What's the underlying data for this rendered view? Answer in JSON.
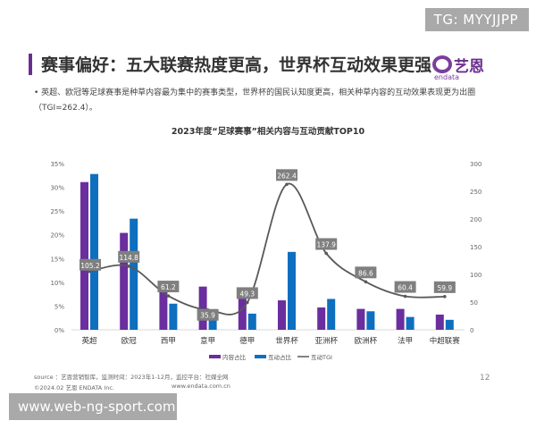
{
  "corner_tag": "TG: MYYJJPP",
  "header": {
    "title": "赛事偏好：五大联赛热度更高，世界杯互动效果更强",
    "logo_cn": "艺恩",
    "logo_en": "endata"
  },
  "bullet": "英超、欧冠等足球赛事是种草内容最为集中的赛事类型，世界杯的国民认知度更高，相关种草内容的互动效果表现更为出圈（TGI=262.4）。",
  "colors": {
    "content": "#6a2e9e",
    "interaction": "#0e6fbf",
    "tgi": "#595959",
    "label_bg": "#7f7f7f"
  },
  "chart_data": {
    "type": "bar",
    "title": "2023年度“足球赛事”相关内容与互动贡献TOP10",
    "categories": [
      "英超",
      "欧冠",
      "西甲",
      "意甲",
      "德甲",
      "世界杯",
      "亚洲杯",
      "欧洲杯",
      "法甲",
      "中超联赛"
    ],
    "series": [
      {
        "name": "内容占比",
        "type": "bar",
        "axis": "left",
        "values": [
          31.1,
          20.4,
          8.3,
          9.1,
          7.0,
          6.2,
          4.7,
          4.4,
          4.4,
          3.2
        ]
      },
      {
        "name": "互动占比",
        "type": "bar",
        "axis": "left",
        "values": [
          32.8,
          23.4,
          5.5,
          3.4,
          3.4,
          16.4,
          6.5,
          3.9,
          2.7,
          2.1
        ]
      },
      {
        "name": "互动TGI",
        "type": "line",
        "axis": "right",
        "values": [
          105.2,
          114.8,
          61.2,
          35.9,
          49.3,
          262.4,
          137.9,
          86.6,
          60.4,
          59.9
        ]
      }
    ],
    "left_axis": {
      "min": 0,
      "max": 35,
      "ticks": [
        "0%",
        "5%",
        "10%",
        "15%",
        "20%",
        "25%",
        "30%",
        "35%"
      ]
    },
    "right_axis": {
      "min": 0,
      "max": 300,
      "ticks": [
        "0",
        "50",
        "100",
        "150",
        "200",
        "250",
        "300"
      ]
    },
    "legend": "bottom",
    "grid": false
  },
  "footer": {
    "source": "source ：艺恩营销智库，监测时间：2023年1-12月，监控平台：社媒全网",
    "copyright": "©2024.02  艺恩 ENDATA Inc.",
    "url": "www.endata.com.cn",
    "page": "12"
  },
  "watermark": "www.web-ng-sport.com"
}
